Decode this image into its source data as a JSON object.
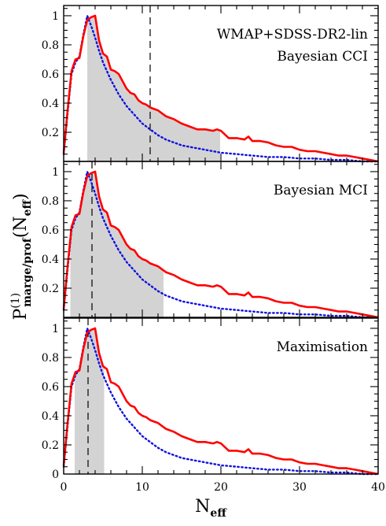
{
  "chart_data": {
    "type": "line",
    "xlabel": "N",
    "xlabel_sub": "eff",
    "ylabel": "P",
    "ylabel_sup": "(1)",
    "ylabel_sub": "marge/prof",
    "ylabel_arg_open": "(N",
    "ylabel_arg_sub": "eff",
    "ylabel_arg_close": ")",
    "xlim": [
      0,
      40
    ],
    "ylim": [
      0,
      1.07
    ],
    "xticks_major": [
      0,
      10,
      20,
      30,
      40
    ],
    "xtick_labels": [
      "0",
      "10",
      "20",
      "30",
      "40"
    ],
    "yticks_major": [
      0.2,
      0.4,
      0.6,
      0.8,
      1
    ],
    "ytick_labels_top": [
      "0.2",
      "0.4",
      "0.6",
      "0.8",
      "1"
    ],
    "ytick_labels_bottom": [
      "0",
      "0.2",
      "0.4",
      "0.6",
      "0.8",
      "1"
    ],
    "series": [
      {
        "style": "solid",
        "color": "#ff0000",
        "x": [
          0,
          0.5,
          1,
          1.5,
          2,
          2.5,
          3,
          3.5,
          4,
          4.5,
          5,
          5.5,
          6,
          6.5,
          7,
          7.5,
          8,
          8.5,
          9,
          9.5,
          10,
          10.5,
          11,
          11.5,
          12,
          12.5,
          13,
          14,
          15,
          16,
          17,
          18,
          19,
          19.5,
          20,
          21,
          22,
          23,
          23.5,
          24,
          25,
          26,
          27,
          28,
          29,
          30,
          31,
          32,
          33,
          34,
          35,
          36,
          37,
          38,
          39,
          40
        ],
        "y": [
          0.06,
          0.35,
          0.62,
          0.7,
          0.71,
          0.86,
          0.97,
          0.99,
          1.0,
          0.83,
          0.74,
          0.72,
          0.63,
          0.62,
          0.6,
          0.55,
          0.5,
          0.47,
          0.46,
          0.42,
          0.4,
          0.39,
          0.37,
          0.36,
          0.35,
          0.33,
          0.31,
          0.29,
          0.26,
          0.24,
          0.22,
          0.22,
          0.21,
          0.22,
          0.21,
          0.16,
          0.16,
          0.15,
          0.17,
          0.14,
          0.14,
          0.13,
          0.11,
          0.1,
          0.1,
          0.08,
          0.07,
          0.07,
          0.06,
          0.05,
          0.04,
          0.04,
          0.03,
          0.02,
          0.01,
          0.0
        ]
      },
      {
        "style": "dotted",
        "color": "#1010e0",
        "x": [
          0,
          0.5,
          1,
          1.5,
          2,
          2.5,
          3,
          3.5,
          4,
          4.5,
          5,
          5.5,
          6,
          7,
          8,
          9,
          10,
          11,
          12,
          13,
          14,
          15,
          16,
          18,
          20,
          22,
          24,
          26,
          28,
          30,
          32,
          34,
          36,
          38,
          40
        ],
        "y": [
          0.05,
          0.33,
          0.6,
          0.68,
          0.72,
          0.87,
          1.0,
          0.93,
          0.85,
          0.76,
          0.68,
          0.62,
          0.56,
          0.46,
          0.38,
          0.32,
          0.26,
          0.22,
          0.18,
          0.15,
          0.13,
          0.11,
          0.1,
          0.08,
          0.06,
          0.05,
          0.04,
          0.03,
          0.03,
          0.02,
          0.02,
          0.01,
          0.01,
          0.0,
          0.0
        ]
      }
    ],
    "panels": [
      {
        "annotation_lines": [
          "WMAP+SDSS-DR2-lin",
          "Bayesian CCI"
        ],
        "interval": [
          3.0,
          19.9
        ],
        "dashed_x": 11.0
      },
      {
        "annotation_lines": [
          "Bayesian MCI"
        ],
        "interval": [
          0.85,
          12.7
        ],
        "dashed_x": 3.6
      },
      {
        "annotation_lines": [
          "Maximisation"
        ],
        "interval": [
          1.4,
          5.15
        ],
        "dashed_x": 3.1
      }
    ]
  }
}
